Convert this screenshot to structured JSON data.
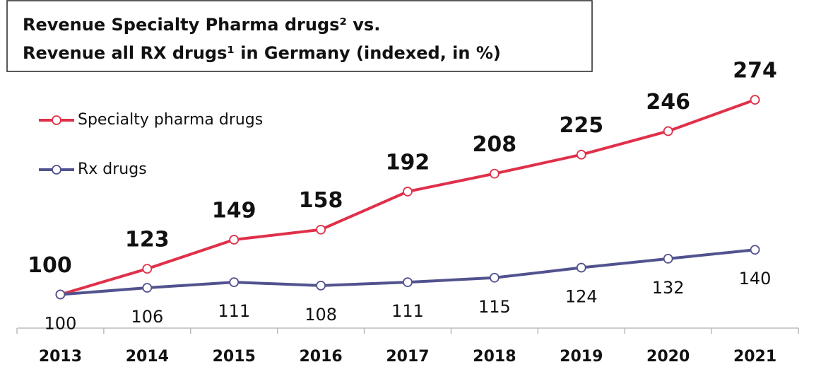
{
  "chart_data": {
    "type": "line",
    "title": "Revenue Specialty Pharma drugs² vs.",
    "subtitle": "Revenue all RX drugs¹ in Germany (indexed, in %)",
    "categories": [
      "2013",
      "2014",
      "2015",
      "2016",
      "2017",
      "2018",
      "2019",
      "2020",
      "2021"
    ],
    "series": [
      {
        "name": "Specialty pharma drugs",
        "color": "#e0304a",
        "values": [
          100,
          123,
          149,
          158,
          192,
          208,
          225,
          246,
          274
        ]
      },
      {
        "name": "Rx drugs",
        "color": "#52528f",
        "values": [
          100,
          106,
          111,
          108,
          111,
          115,
          124,
          132,
          140
        ]
      }
    ],
    "ylim": [
      70,
      300
    ]
  }
}
